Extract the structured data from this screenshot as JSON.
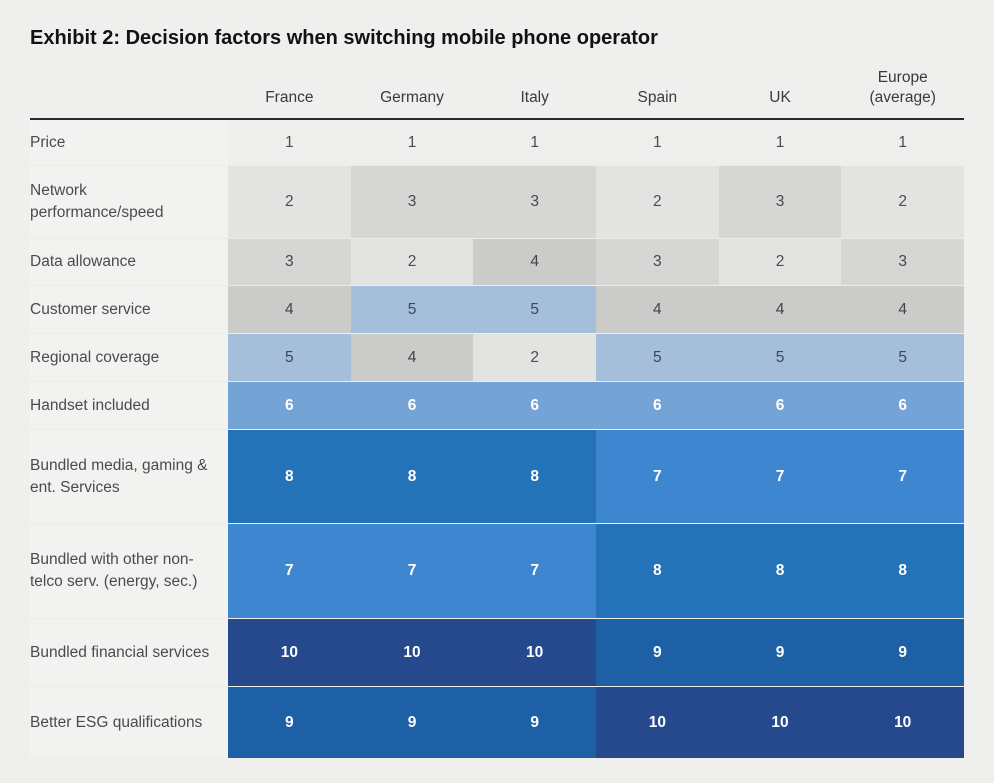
{
  "title": "Exhibit 2: Decision factors when switching mobile phone operator",
  "chart_data": {
    "type": "heatmap",
    "title": "Exhibit 2: Decision factors when switching mobile phone operator",
    "columns": [
      "France",
      "Germany",
      "Italy",
      "Spain",
      "UK",
      "Europe (average)"
    ],
    "rows": [
      {
        "label": "Price",
        "values": [
          1,
          1,
          1,
          1,
          1,
          1
        ]
      },
      {
        "label": "Network performance/speed",
        "values": [
          2,
          3,
          3,
          2,
          3,
          2
        ]
      },
      {
        "label": "Data allowance",
        "values": [
          3,
          2,
          4,
          3,
          2,
          3
        ]
      },
      {
        "label": "Customer service",
        "values": [
          4,
          5,
          5,
          4,
          4,
          4
        ]
      },
      {
        "label": "Regional coverage",
        "values": [
          5,
          4,
          2,
          5,
          5,
          5
        ]
      },
      {
        "label": "Handset included",
        "values": [
          6,
          6,
          6,
          6,
          6,
          6
        ]
      },
      {
        "label": "Bundled media, gaming & ent. Services",
        "values": [
          8,
          8,
          8,
          7,
          7,
          7
        ]
      },
      {
        "label": "Bundled with other non-telco serv. (energy, sec.)",
        "values": [
          7,
          7,
          7,
          8,
          8,
          8
        ]
      },
      {
        "label": "Bundled financial services",
        "values": [
          10,
          10,
          10,
          9,
          9,
          9
        ]
      },
      {
        "label": "Better ESG qualifications",
        "values": [
          9,
          9,
          9,
          10,
          10,
          10
        ]
      }
    ],
    "value_range": [
      1,
      10
    ],
    "color_scale": {
      "1": {
        "bg": "#eeeeec",
        "text": "#4d4d4d"
      },
      "2": {
        "bg": "#e3e3e1",
        "text": "#4d4d4d"
      },
      "3": {
        "bg": "#d6d6d4",
        "text": "#484848"
      },
      "4": {
        "bg": "#cbcbc9",
        "text": "#434343"
      },
      "5": {
        "bg": "#a5bed9",
        "text": "#3d4753"
      },
      "6": {
        "bg": "#74a3d6",
        "text": "#ffffff"
      },
      "7": {
        "bg": "#3e86cf",
        "text": "#ffffff"
      },
      "8": {
        "bg": "#2473b8",
        "text": "#ffffff"
      },
      "9": {
        "bg": "#1d60a6",
        "text": "#ffffff"
      },
      "10": {
        "bg": "#26498d",
        "text": "#ffffff"
      }
    }
  }
}
